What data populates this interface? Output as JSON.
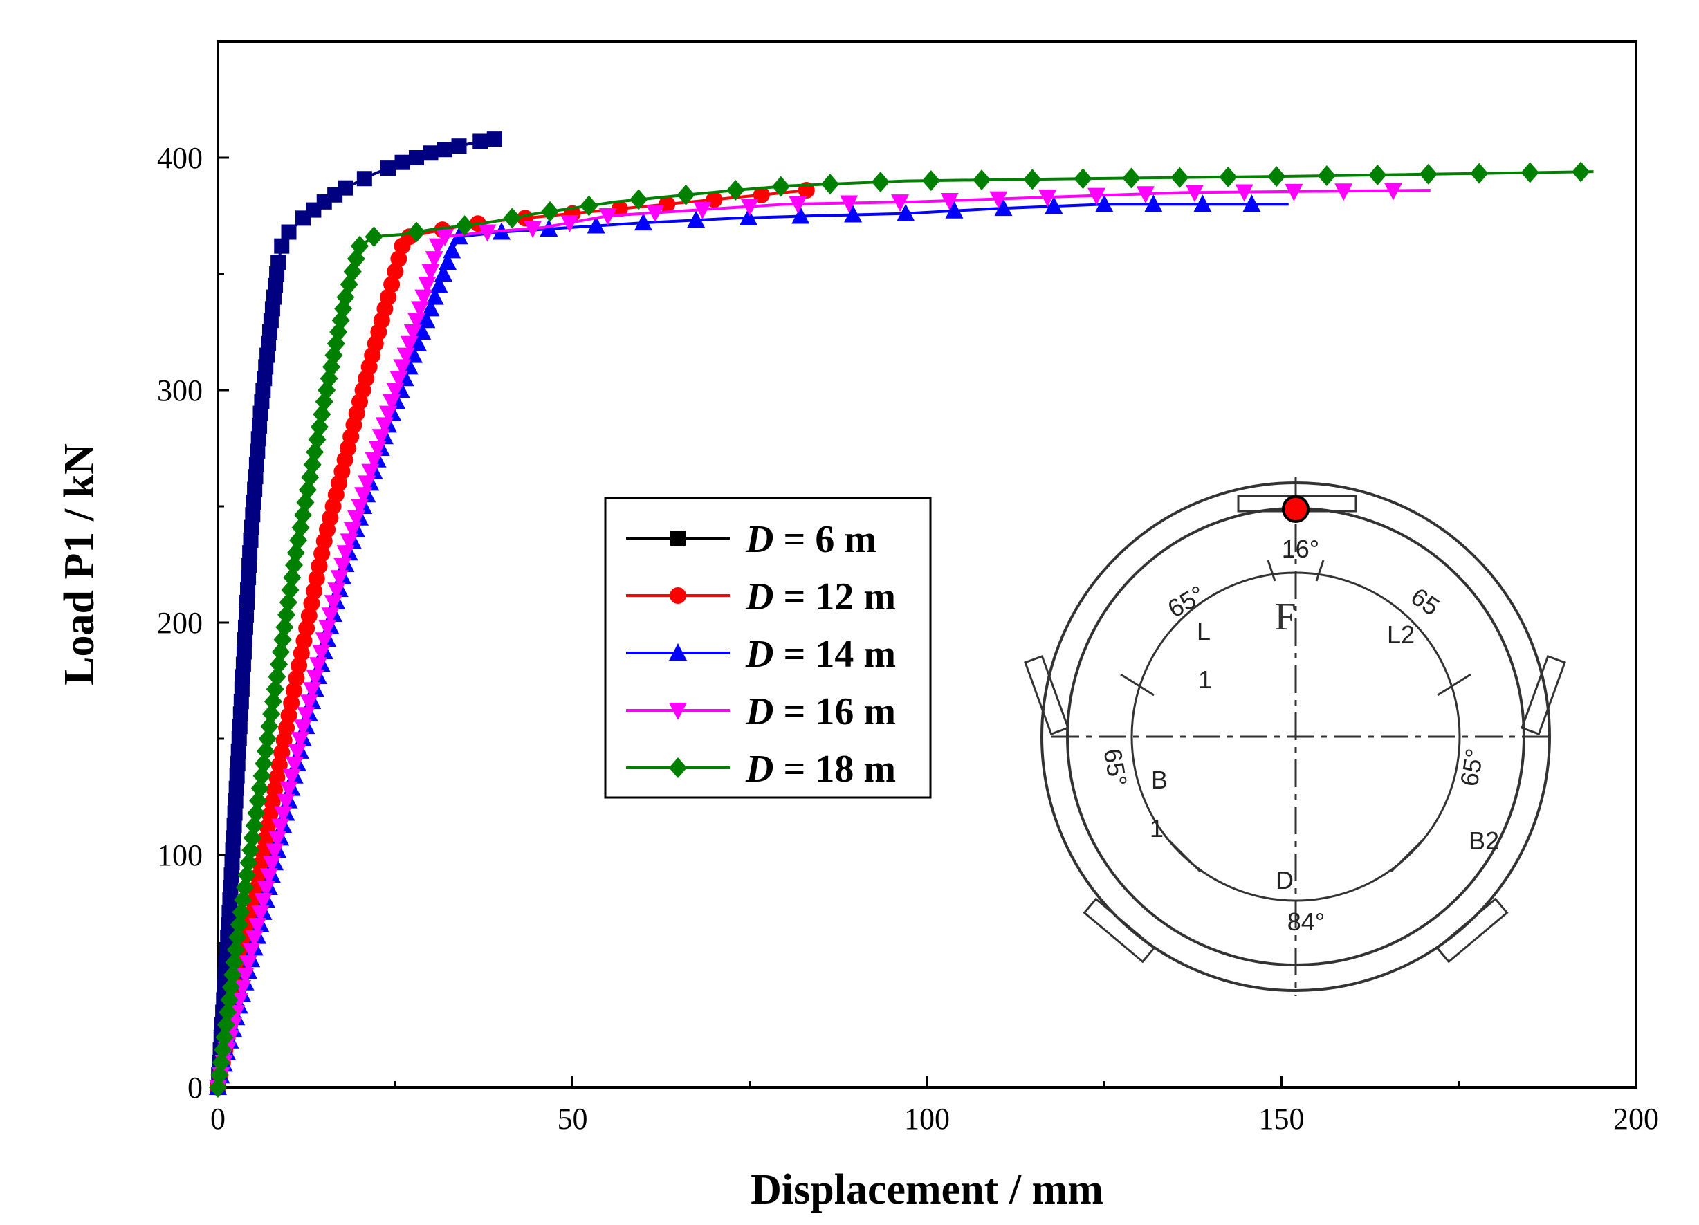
{
  "chart_data": {
    "type": "line",
    "title": "",
    "xlabel": "Displacement / mm",
    "ylabel": "Load P1 / kN",
    "xlim": [
      0,
      200
    ],
    "ylim": [
      0,
      450
    ],
    "xticks": [
      0,
      50,
      100,
      150,
      200
    ],
    "yticks": [
      0,
      100,
      200,
      300,
      400
    ],
    "grid": false,
    "legend_position": "center",
    "series": [
      {
        "name": "D = 6 m",
        "prefix": "D",
        "suffix": " = 6 m",
        "color": "#000000",
        "fill": "#000080",
        "marker": "square",
        "points": [
          [
            0,
            0
          ],
          [
            1.5,
            70
          ],
          [
            3,
            150
          ],
          [
            4.5,
            230
          ],
          [
            6,
            290
          ],
          [
            7.5,
            330
          ],
          [
            8.5,
            355
          ],
          [
            9,
            362
          ],
          [
            10,
            368
          ],
          [
            12,
            374
          ],
          [
            15,
            381
          ],
          [
            18,
            387
          ],
          [
            22,
            393
          ],
          [
            26,
            398
          ],
          [
            30,
            402
          ],
          [
            34,
            405
          ],
          [
            37,
            407
          ],
          [
            39,
            408
          ]
        ],
        "dense_markers": true
      },
      {
        "name": "D = 12 m",
        "prefix": "D",
        "suffix": " = 12 m",
        "color": "#ff0000",
        "fill": "#ff0000",
        "marker": "circle",
        "points": [
          [
            0,
            0
          ],
          [
            5,
            80
          ],
          [
            10,
            160
          ],
          [
            15,
            235
          ],
          [
            20,
            295
          ],
          [
            24,
            340
          ],
          [
            26,
            362
          ],
          [
            27,
            366
          ],
          [
            30,
            368
          ],
          [
            35,
            371
          ],
          [
            40,
            373
          ],
          [
            50,
            376
          ],
          [
            60,
            379
          ],
          [
            70,
            382
          ],
          [
            80,
            385
          ],
          [
            83,
            386
          ]
        ],
        "dense_markers": true
      },
      {
        "name": "D = 14 m",
        "prefix": "D",
        "suffix": " = 14 m",
        "color": "#0000ff",
        "fill": "#0000ff",
        "marker": "triangle-up",
        "points": [
          [
            0,
            0
          ],
          [
            6,
            70
          ],
          [
            12,
            150
          ],
          [
            18,
            225
          ],
          [
            24,
            285
          ],
          [
            30,
            335
          ],
          [
            33,
            360
          ],
          [
            34,
            366
          ],
          [
            40,
            368
          ],
          [
            50,
            370
          ],
          [
            60,
            372
          ],
          [
            73,
            374
          ],
          [
            84,
            375
          ],
          [
            97,
            376
          ],
          [
            109,
            378
          ],
          [
            125,
            380
          ],
          [
            151,
            380
          ]
        ],
        "dense_markers": true
      },
      {
        "name": "D = 16 m",
        "prefix": "D",
        "suffix": " = 16 m",
        "color": "#ff00ff",
        "fill": "#ff00ff",
        "marker": "triangle-down",
        "points": [
          [
            0,
            0
          ],
          [
            6,
            75
          ],
          [
            12,
            155
          ],
          [
            18,
            230
          ],
          [
            24,
            290
          ],
          [
            29,
            340
          ],
          [
            31,
            362
          ],
          [
            32,
            366
          ],
          [
            38,
            368
          ],
          [
            46,
            370
          ],
          [
            55,
            375
          ],
          [
            70,
            378
          ],
          [
            80,
            380
          ],
          [
            98,
            381
          ],
          [
            117,
            383
          ],
          [
            136,
            385
          ],
          [
            171,
            386
          ]
        ],
        "dense_markers": true
      },
      {
        "name": "D = 18 m",
        "prefix": "D",
        "suffix": " = 18 m",
        "color": "#008000",
        "fill": "#008000",
        "marker": "diamond",
        "points": [
          [
            0,
            0
          ],
          [
            3,
            70
          ],
          [
            7,
            150
          ],
          [
            11,
            230
          ],
          [
            15,
            295
          ],
          [
            18,
            340
          ],
          [
            20,
            362
          ],
          [
            22,
            366
          ],
          [
            26,
            367
          ],
          [
            30,
            369
          ],
          [
            38,
            372
          ],
          [
            45,
            376
          ],
          [
            56,
            381
          ],
          [
            66,
            384
          ],
          [
            73,
            386
          ],
          [
            81,
            388
          ],
          [
            97,
            390
          ],
          [
            122,
            391
          ],
          [
            151,
            392
          ],
          [
            194,
            394
          ]
        ],
        "dense_markers": true
      }
    ],
    "inset": {
      "labels": {
        "top_angle": "16°",
        "upper_left_angle": "65°",
        "upper_right_angle": "65",
        "left_angle": "65°",
        "right_angle": "65°",
        "bottom_angle": "84°",
        "seg_F": "F",
        "seg_L": "L",
        "seg_L_sub": "1",
        "seg_L2": "L2",
        "seg_B": "B",
        "seg_B_sub": "1",
        "seg_B2": "B2",
        "seg_D": "D"
      },
      "load_point_color": "#ff0000"
    }
  }
}
